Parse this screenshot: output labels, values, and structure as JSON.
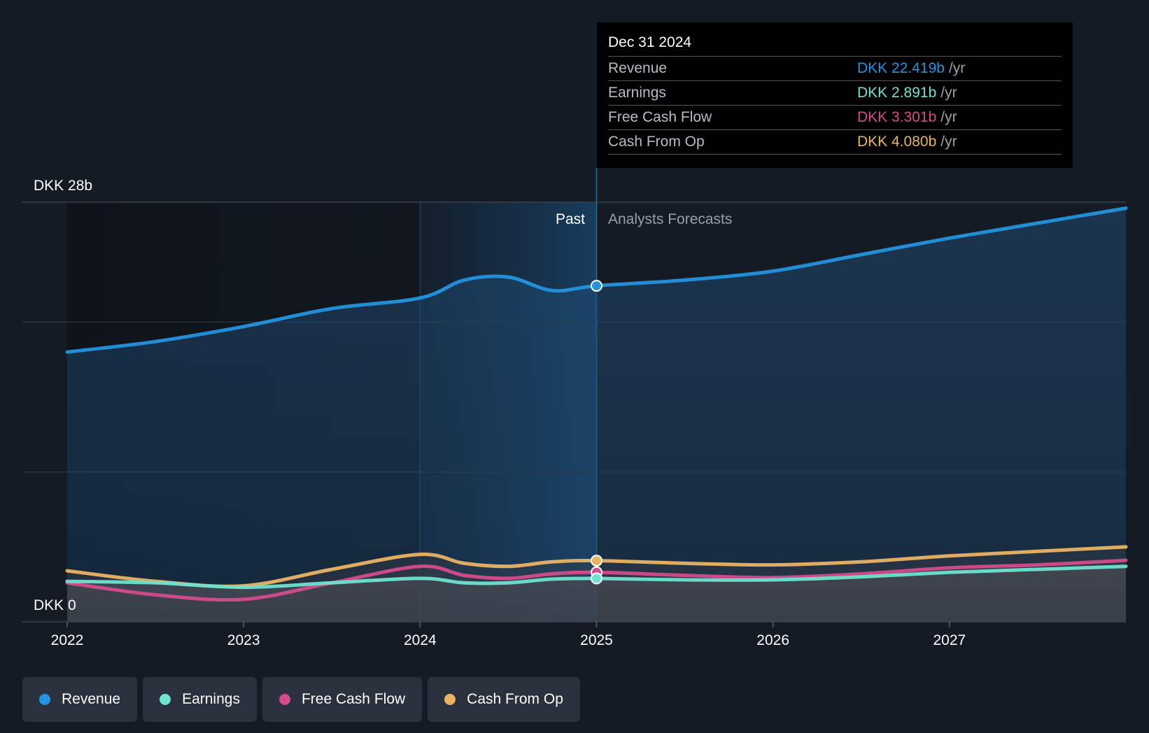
{
  "chart_data": {
    "type": "area",
    "y_axis": {
      "top_label": "DKK 28b",
      "bottom_label": "DKK 0",
      "ylim": [
        0,
        28
      ]
    },
    "x_ticks": [
      "2022",
      "2023",
      "2024",
      "2025",
      "2026",
      "2027"
    ],
    "x_range": [
      2022,
      2028
    ],
    "divider_x": 2025,
    "past_label": "Past",
    "forecast_label": "Analysts Forecasts",
    "series": [
      {
        "name": "Revenue",
        "color": "#2394df",
        "x": [
          2022,
          2022.5,
          2023,
          2023.5,
          2024,
          2024.25,
          2024.5,
          2024.75,
          2025,
          2025.5,
          2026,
          2026.5,
          2027,
          2027.5,
          2028
        ],
        "values": [
          18.0,
          18.7,
          19.7,
          20.9,
          21.6,
          22.8,
          23.0,
          22.1,
          22.419,
          22.8,
          23.4,
          24.5,
          25.6,
          26.6,
          27.6
        ]
      },
      {
        "name": "Earnings",
        "color": "#6ee3cf",
        "x": [
          2022,
          2022.5,
          2023,
          2023.5,
          2024,
          2024.25,
          2024.5,
          2024.75,
          2025,
          2025.5,
          2026,
          2026.5,
          2027,
          2027.5,
          2028
        ],
        "values": [
          2.7,
          2.6,
          2.3,
          2.6,
          2.9,
          2.6,
          2.6,
          2.85,
          2.891,
          2.8,
          2.8,
          3.0,
          3.3,
          3.5,
          3.7
        ]
      },
      {
        "name": "Free Cash Flow",
        "color": "#d34c8b",
        "x": [
          2022,
          2022.5,
          2023,
          2023.5,
          2024,
          2024.25,
          2024.5,
          2024.75,
          2025,
          2025.5,
          2026,
          2026.5,
          2027,
          2027.5,
          2028
        ],
        "values": [
          2.6,
          1.8,
          1.5,
          2.6,
          3.7,
          3.1,
          2.9,
          3.2,
          3.301,
          3.1,
          2.95,
          3.2,
          3.6,
          3.8,
          4.1
        ]
      },
      {
        "name": "Cash From Op",
        "color": "#eab363",
        "x": [
          2022,
          2022.5,
          2023,
          2023.5,
          2024,
          2024.25,
          2024.5,
          2024.75,
          2025,
          2025.5,
          2026,
          2026.5,
          2027,
          2027.5,
          2028
        ],
        "values": [
          3.4,
          2.7,
          2.4,
          3.5,
          4.5,
          3.9,
          3.7,
          4.0,
          4.08,
          3.9,
          3.8,
          4.0,
          4.4,
          4.7,
          5.0
        ]
      }
    ],
    "tooltip": {
      "date": "Dec 31 2024",
      "rows": [
        {
          "name": "Revenue",
          "value": "DKK 22.419b",
          "unit": "/yr",
          "color": "#2394df"
        },
        {
          "name": "Earnings",
          "value": "DKK 2.891b",
          "unit": "/yr",
          "color": "#6ee3cf"
        },
        {
          "name": "Free Cash Flow",
          "value": "DKK 3.301b",
          "unit": "/yr",
          "color": "#d34c8b"
        },
        {
          "name": "Cash From Op",
          "value": "DKK 4.080b",
          "unit": "/yr",
          "color": "#eab363"
        }
      ]
    },
    "legend": [
      {
        "name": "Revenue",
        "color": "#2394df"
      },
      {
        "name": "Earnings",
        "color": "#6ee3cf"
      },
      {
        "name": "Free Cash Flow",
        "color": "#d34c8b"
      },
      {
        "name": "Cash From Op",
        "color": "#eab363"
      }
    ]
  }
}
